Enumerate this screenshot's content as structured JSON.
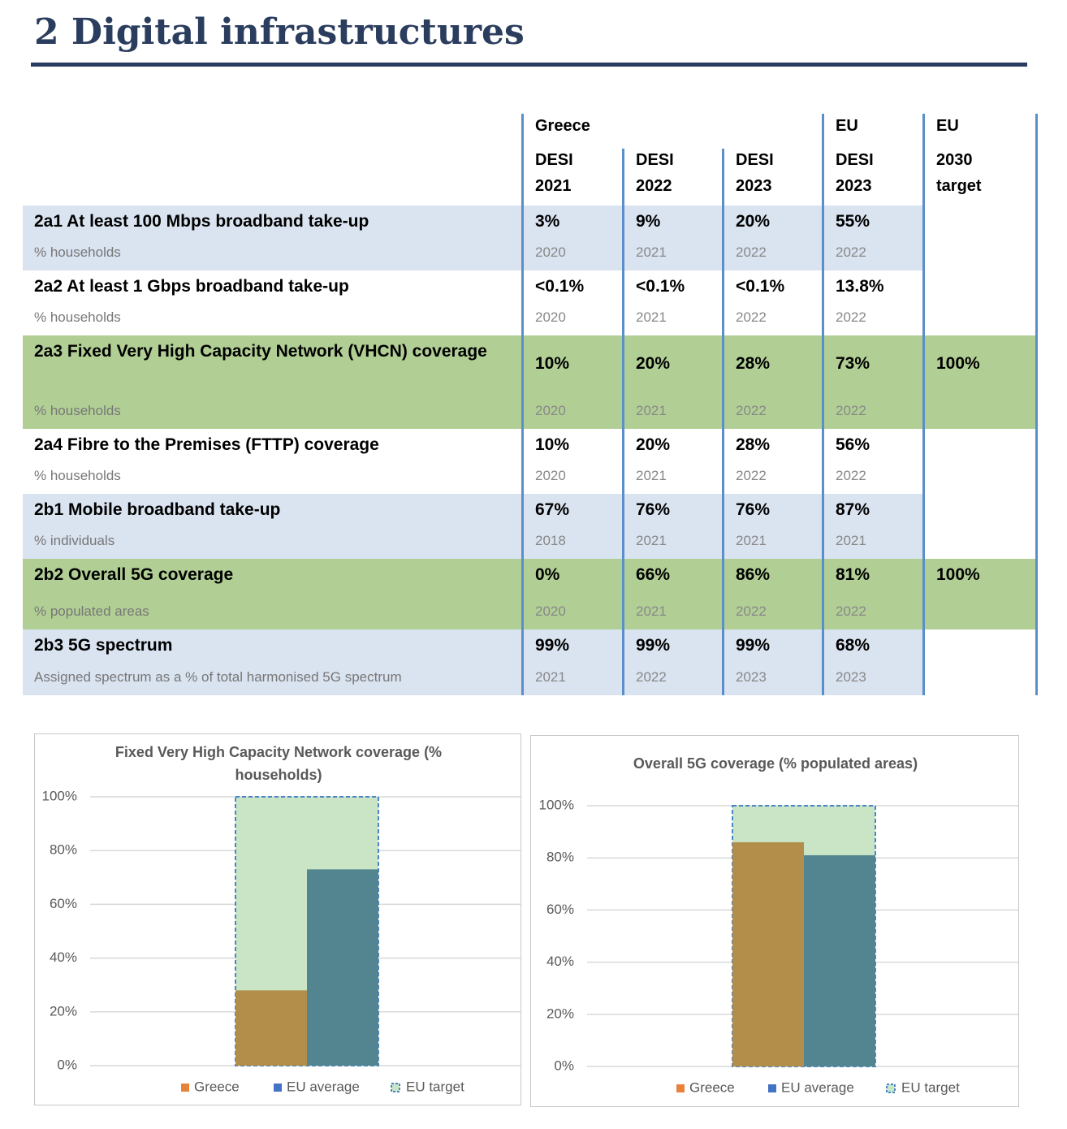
{
  "title": "2 Digital infrastructures",
  "table": {
    "group_headers": [
      "Greece",
      "EU",
      "EU"
    ],
    "column_headers": [
      [
        "DESI",
        "2021"
      ],
      [
        "DESI",
        "2022"
      ],
      [
        "DESI",
        "2023"
      ],
      [
        "DESI",
        "2023"
      ],
      [
        "2030",
        "target"
      ]
    ],
    "rows": [
      {
        "label": "2a1 At least 100 Mbps broadband take-up",
        "unit": "% households",
        "values": [
          "3%",
          "9%",
          "20%",
          "55%"
        ],
        "years": [
          2020,
          2021,
          2022,
          2022
        ]
      },
      {
        "label": "2a2 At least 1 Gbps broadband take-up",
        "unit": "% households",
        "values": [
          "<0.1%",
          "<0.1%",
          "<0.1%",
          "13.8%"
        ],
        "years": [
          2020,
          2021,
          2022,
          2022
        ]
      },
      {
        "label": "2a3 Fixed Very High Capacity Network (VHCN) coverage",
        "unit": "% households",
        "values": [
          "10%",
          "20%",
          "28%",
          "73%"
        ],
        "years": [
          2020,
          2021,
          2022,
          2022
        ],
        "target": "100%"
      },
      {
        "label": "2a4 Fibre to the Premises (FTTP) coverage",
        "unit": "% households",
        "values": [
          "10%",
          "20%",
          "28%",
          "56%"
        ],
        "years": [
          2020,
          2021,
          2022,
          2022
        ]
      },
      {
        "label": "2b1 Mobile broadband take-up",
        "unit": "% individuals",
        "values": [
          "67%",
          "76%",
          "76%",
          "87%"
        ],
        "years": [
          2018,
          2021,
          2021,
          2021
        ]
      },
      {
        "label": "2b2 Overall 5G coverage",
        "unit": "% populated areas",
        "values": [
          "0%",
          "66%",
          "86%",
          "81%"
        ],
        "years": [
          2020,
          2021,
          2022,
          2022
        ],
        "target": "100%"
      },
      {
        "label": "2b3 5G spectrum",
        "unit": "Assigned spectrum as a % of total harmonised 5G spectrum",
        "values": [
          "99%",
          "99%",
          "99%",
          "68%"
        ],
        "years": [
          2021,
          2022,
          2023,
          2023
        ]
      }
    ]
  },
  "chart_data": [
    {
      "type": "bar",
      "title": "Fixed Very High Capacity Network coverage (% households)",
      "ylim": [
        0,
        100
      ],
      "yticks": [
        {
          "value": 0,
          "label": "0%"
        },
        {
          "value": 20,
          "label": "20%"
        },
        {
          "value": 40,
          "label": "40%"
        },
        {
          "value": 60,
          "label": "60%"
        },
        {
          "value": 80,
          "label": "80%"
        },
        {
          "value": 100,
          "label": "100%"
        }
      ],
      "grid": true,
      "series": [
        {
          "name": "EU target",
          "values": [
            100
          ],
          "color": "#c9e5c6",
          "legend_color": "#4a86c5",
          "style": "dashed"
        },
        {
          "name": "Greece",
          "values": [
            28
          ],
          "color": "#b38e4a",
          "legend_color": "#e8823a"
        },
        {
          "name": "EU average",
          "values": [
            73
          ],
          "color": "#528590",
          "legend_color": "#4472c4"
        }
      ]
    },
    {
      "type": "bar",
      "title": "Overall 5G coverage (% populated areas)",
      "ylim": [
        0,
        100
      ],
      "yticks": [
        {
          "value": 0,
          "label": "0%"
        },
        {
          "value": 20,
          "label": "20%"
        },
        {
          "value": 40,
          "label": "40%"
        },
        {
          "value": 60,
          "label": "60%"
        },
        {
          "value": 80,
          "label": "80%"
        },
        {
          "value": 100,
          "label": "100%"
        }
      ],
      "grid": true,
      "series": [
        {
          "name": "EU target",
          "values": [
            100
          ],
          "color": "#c9e5c6",
          "legend_color": "#4a86c5",
          "style": "dashed"
        },
        {
          "name": "Greece",
          "values": [
            86
          ],
          "color": "#b38e4a",
          "legend_color": "#e8823a"
        },
        {
          "name": "EU average",
          "values": [
            81
          ],
          "color": "#528590",
          "legend_color": "#4472c4"
        }
      ]
    }
  ]
}
